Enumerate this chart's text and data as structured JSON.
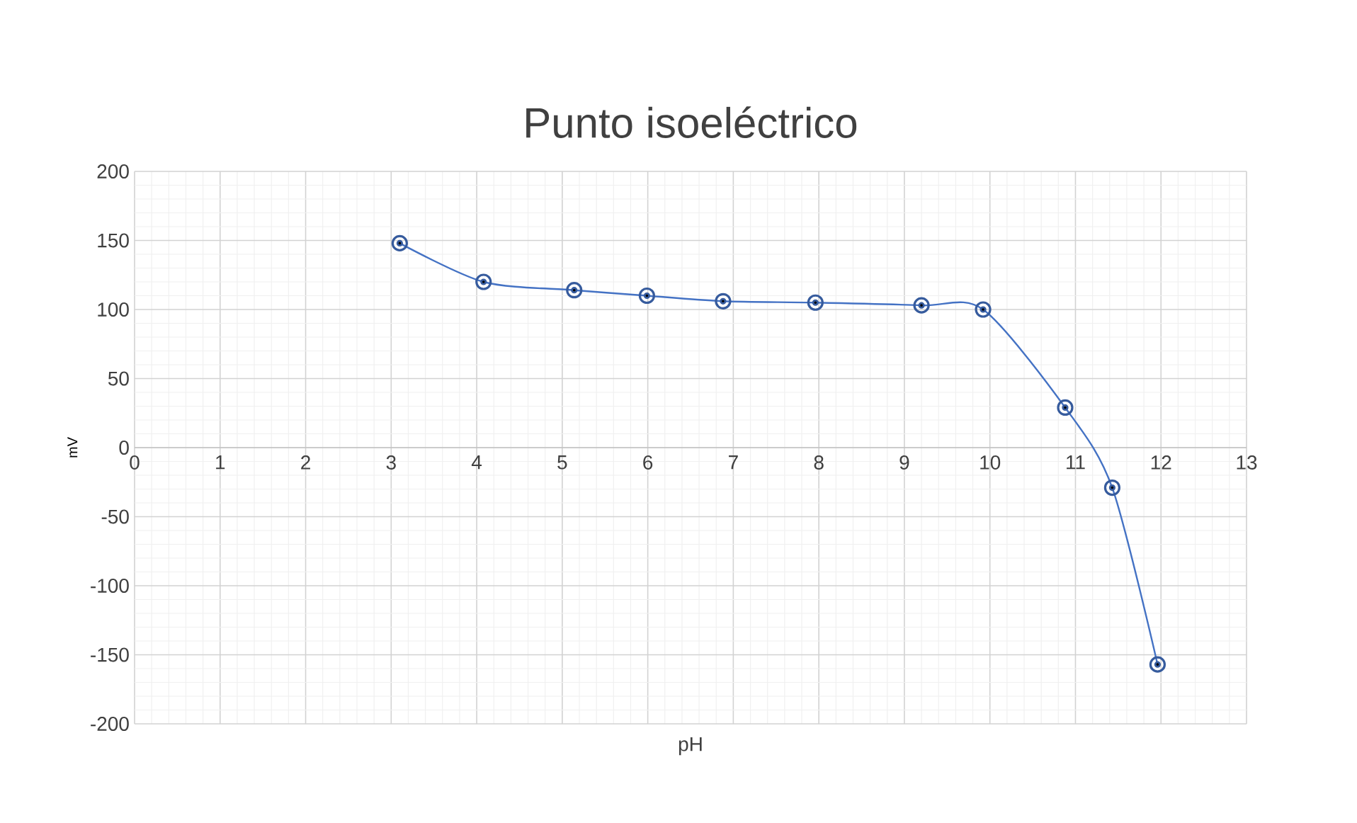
{
  "chart_data": {
    "type": "line",
    "title": "Punto isoeléctrico",
    "xlabel": "pH",
    "ylabel": "mV",
    "x": [
      3.1,
      4.08,
      5.14,
      5.99,
      6.88,
      7.96,
      9.2,
      9.92,
      10.88,
      11.43,
      11.96
    ],
    "series": [
      {
        "color": "#4472c4",
        "values": [
          148,
          120,
          114,
          110,
          106,
          105,
          103,
          100,
          29,
          -29,
          -157
        ]
      }
    ],
    "xlim": [
      0,
      13
    ],
    "xticks": [
      0,
      1,
      2,
      3,
      4,
      5,
      6,
      7,
      8,
      9,
      10,
      11,
      12,
      13
    ],
    "ylim": [
      -200,
      200
    ],
    "yticks": [
      -200,
      -150,
      -100,
      -50,
      0,
      50,
      100,
      150,
      200
    ],
    "grid": true,
    "marker": "circle",
    "line_style": "solid"
  }
}
